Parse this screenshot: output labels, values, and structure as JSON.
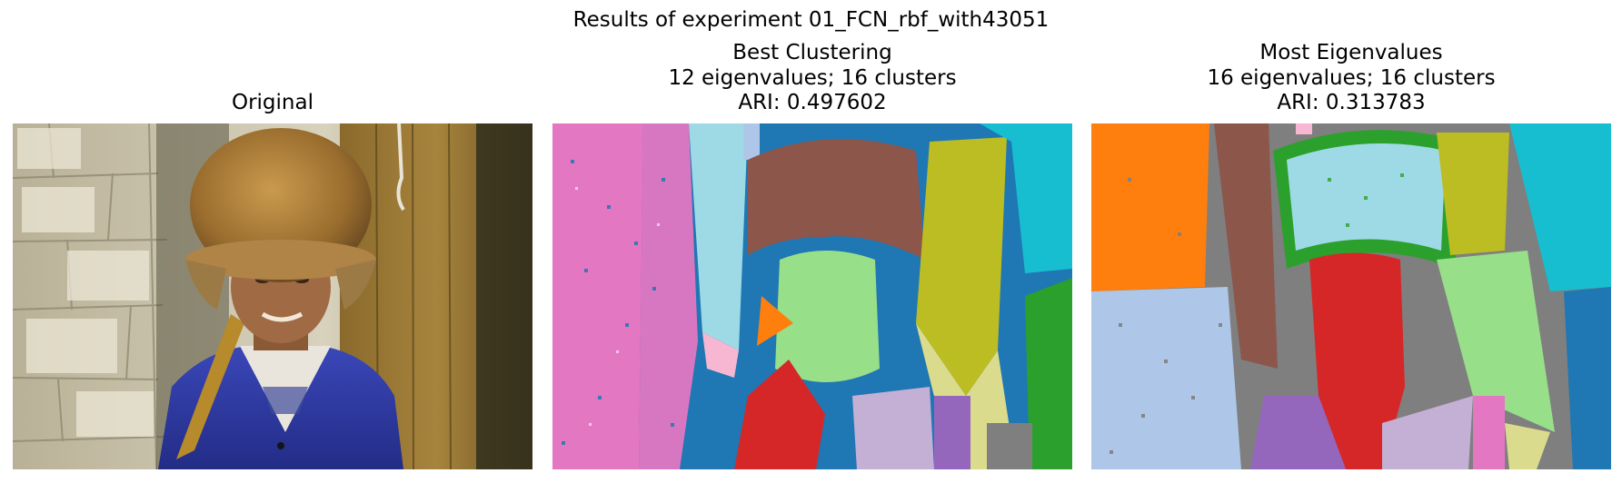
{
  "figure": {
    "suptitle": "Results of experiment 01_FCN_rbf_with43051"
  },
  "panels": [
    {
      "id": "original",
      "lines": [
        "Original"
      ],
      "image": "photo of a man wearing a fur hat and blue jacket in front of a stone wall"
    },
    {
      "id": "best",
      "lines": [
        "Best Clustering",
        "12 eigenvalues; 16 clusters",
        "ARI: 0.497602"
      ],
      "image": "cluster label map"
    },
    {
      "id": "most",
      "lines": [
        "Most Eigenvalues",
        "16 eigenvalues; 16 clusters",
        "ARI: 0.313783"
      ],
      "image": "cluster label map"
    }
  ],
  "colors": {
    "tab_blue": "#1f77b4",
    "tab_orange": "#ff7f0e",
    "tab_green": "#2ca02c",
    "tab_red": "#d62728",
    "tab_purple": "#9467bd",
    "tab_brown": "#8c564b",
    "tab_pink": "#e377c2",
    "tab_gray": "#7f7f7f",
    "tab_olive": "#bcbd22",
    "tab_cyan": "#17becf",
    "light_blue": "#aec7e8",
    "light_green": "#98df8a",
    "light_purple": "#c5b0d5",
    "light_pink": "#f7b6d2",
    "light_cyan": "#9edae5",
    "light_olive": "#dbdb8d"
  }
}
